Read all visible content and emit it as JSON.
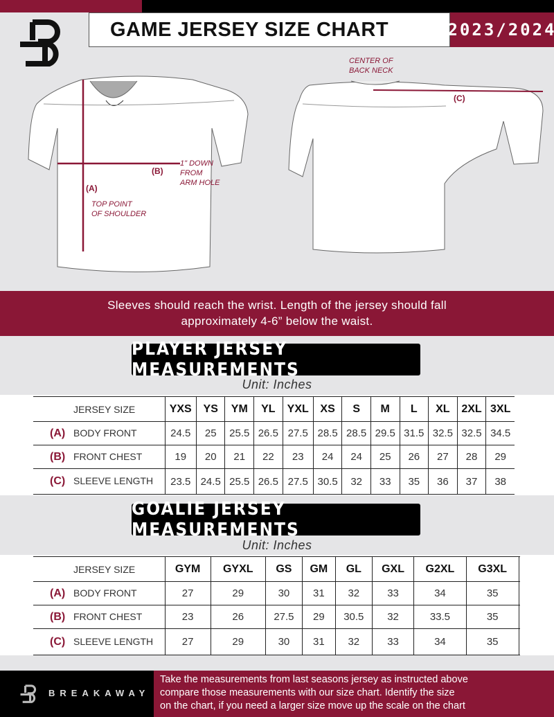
{
  "header": {
    "title": "GAME JERSEY SIZE CHART",
    "season": "2023/2024",
    "logo": "B"
  },
  "diagram": {
    "label_a": "(A)",
    "label_b": "(B)",
    "label_c": "(C)",
    "note_shoulder": [
      "TOP POINT",
      "OF SHOULDER"
    ],
    "note_armhole": [
      "1\" DOWN",
      "FROM",
      "ARM HOLE"
    ],
    "note_back_neck": [
      "CENTER OF",
      "BACK NECK"
    ]
  },
  "banner": {
    "lines": [
      "Sleeves should reach the wrist. Length of the jersey should fall",
      "approximately 4-6” below the waist."
    ]
  },
  "colors": {
    "brand": "#8a1736",
    "dark": "#000000",
    "background": "#e5e5e7"
  },
  "player": {
    "title": "PLAYER JERSEY MEASUREMENTS",
    "unit": "Unit: Inches",
    "size_header": "JERSEY SIZE",
    "sizes": [
      "YXS",
      "YS",
      "YM",
      "YL",
      "YXL",
      "XS",
      "S",
      "M",
      "L",
      "XL",
      "2XL",
      "3XL"
    ],
    "rows": [
      {
        "letter": "(A)",
        "label": "BODY FRONT",
        "values": [
          "24.5",
          "25",
          "25.5",
          "26.5",
          "27.5",
          "28.5",
          "28.5",
          "29.5",
          "31.5",
          "32.5",
          "32.5",
          "34.5"
        ]
      },
      {
        "letter": "(B)",
        "label": "FRONT CHEST",
        "values": [
          "19",
          "20",
          "21",
          "22",
          "23",
          "24",
          "24",
          "25",
          "26",
          "27",
          "28",
          "29"
        ]
      },
      {
        "letter": "(C)",
        "label": "SLEEVE LENGTH",
        "values": [
          "23.5",
          "24.5",
          "25.5",
          "26.5",
          "27.5",
          "30.5",
          "32",
          "33",
          "35",
          "36",
          "37",
          "38"
        ]
      }
    ]
  },
  "goalie": {
    "title": "GOALIE JERSEY MEASUREMENTS",
    "unit": "Unit: Inches",
    "size_header": "JERSEY SIZE",
    "sizes": [
      "GYM",
      "GYXL",
      "GS",
      "GM",
      "GL",
      "GXL",
      "G2XL",
      "G3XL",
      ""
    ],
    "rows": [
      {
        "letter": "(A)",
        "label": "BODY FRONT",
        "values": [
          "27",
          "29",
          "30",
          "31",
          "32",
          "33",
          "34",
          "35",
          ""
        ]
      },
      {
        "letter": "(B)",
        "label": "FRONT CHEST",
        "values": [
          "23",
          "26",
          "27.5",
          "29",
          "30.5",
          "32",
          "33.5",
          "35",
          ""
        ]
      },
      {
        "letter": "(C)",
        "label": "SLEEVE LENGTH",
        "values": [
          "27",
          "29",
          "30",
          "31",
          "32",
          "33",
          "34",
          "35",
          ""
        ]
      }
    ]
  },
  "footer": {
    "brand": "BREAKAWAY",
    "text": [
      "Take the measurements from last seasons jersey as instructed above",
      "compare those measurements  with our size chart. Identify the size",
      "on the chart, if you need a larger size move up the scale on the chart"
    ]
  }
}
